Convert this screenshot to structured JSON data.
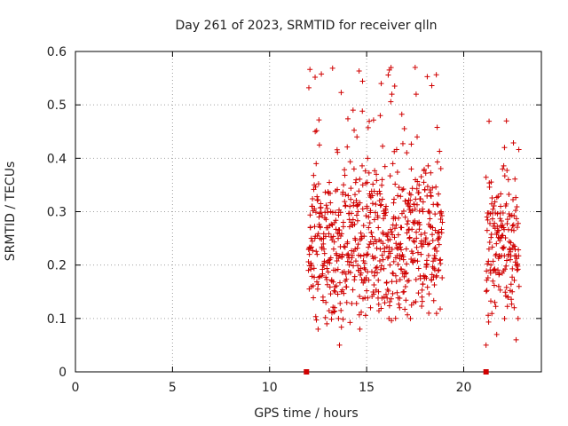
{
  "chart_data": {
    "type": "scatter",
    "title": "Day 261 of 2023, SRMTID for receiver qlln",
    "xlabel": "GPS time / hours",
    "ylabel": "SRMTID / TECUs",
    "xlim": [
      0,
      24
    ],
    "ylim": [
      0,
      0.6
    ],
    "xticks": [
      0,
      5,
      10,
      15,
      20
    ],
    "xtick_labels": [
      "0",
      "5",
      "10",
      "15",
      "20"
    ],
    "yticks": [
      0,
      0.1,
      0.2,
      0.3,
      0.4,
      0.5,
      0.6
    ],
    "ytick_labels": [
      "0",
      "0.1",
      "0.2",
      "0.3",
      "0.4",
      "0.5",
      "0.6"
    ],
    "grid": true,
    "marker": "+",
    "color": "#d00000",
    "series": [
      {
        "name": "SRMTID",
        "segments": [
          {
            "start_hour": 12.0,
            "end_hour": 18.9,
            "min": 0.05,
            "max": 0.57
          },
          {
            "start_hour": 21.15,
            "end_hour": 22.85,
            "min": 0.05,
            "max": 0.47
          }
        ],
        "points": [
          [
            12.0,
            0.19
          ],
          [
            12.05,
            0.22
          ],
          [
            12.1,
            0.27
          ],
          [
            12.15,
            0.25
          ],
          [
            12.2,
            0.31
          ],
          [
            12.3,
            0.35
          ],
          [
            12.35,
            0.45
          ],
          [
            12.4,
            0.39
          ],
          [
            12.45,
            0.22
          ],
          [
            12.5,
            0.08
          ],
          [
            12.55,
            0.29
          ],
          [
            12.6,
            0.25
          ],
          [
            12.7,
            0.18
          ],
          [
            12.75,
            0.14
          ],
          [
            12.8,
            0.23
          ],
          [
            12.9,
            0.13
          ],
          [
            12.95,
            0.09
          ],
          [
            13.0,
            0.27
          ],
          [
            13.1,
            0.21
          ],
          [
            13.15,
            0.3
          ],
          [
            13.2,
            0.17
          ],
          [
            13.3,
            0.23
          ],
          [
            13.35,
            0.12
          ],
          [
            13.4,
            0.19
          ],
          [
            13.5,
            0.26
          ],
          [
            13.55,
            0.1
          ],
          [
            13.6,
            0.05
          ],
          [
            13.7,
            0.15
          ],
          [
            13.75,
            0.22
          ],
          [
            13.8,
            0.28
          ],
          [
            13.9,
            0.17
          ],
          [
            14.0,
            0.24
          ],
          [
            14.05,
            0.33
          ],
          [
            14.1,
            0.2
          ],
          [
            14.2,
            0.28
          ],
          [
            14.3,
            0.49
          ],
          [
            14.35,
            0.38
          ],
          [
            14.4,
            0.25
          ],
          [
            14.5,
            0.44
          ],
          [
            14.55,
            0.3
          ],
          [
            14.6,
            0.19
          ],
          [
            14.65,
            0.08
          ],
          [
            14.7,
            0.26
          ],
          [
            14.8,
            0.35
          ],
          [
            14.9,
            0.17
          ],
          [
            15.0,
            0.22
          ],
          [
            15.05,
            0.4
          ],
          [
            15.1,
            0.29
          ],
          [
            15.2,
            0.12
          ],
          [
            15.3,
            0.33
          ],
          [
            15.35,
            0.24
          ],
          [
            15.4,
            0.18
          ],
          [
            15.5,
            0.37
          ],
          [
            15.6,
            0.27
          ],
          [
            15.7,
            0.48
          ],
          [
            15.75,
            0.54
          ],
          [
            15.8,
            0.36
          ],
          [
            15.85,
            0.21
          ],
          [
            15.9,
            0.14
          ],
          [
            16.0,
            0.31
          ],
          [
            16.1,
            0.26
          ],
          [
            16.15,
            0.1
          ],
          [
            16.2,
            0.2
          ],
          [
            16.3,
            0.52
          ],
          [
            16.35,
            0.39
          ],
          [
            16.4,
            0.29
          ],
          [
            16.5,
            0.18
          ],
          [
            16.6,
            0.33
          ],
          [
            16.7,
            0.12
          ],
          [
            16.75,
            0.24
          ],
          [
            16.8,
            0.27
          ],
          [
            16.9,
            0.21
          ],
          [
            17.0,
            0.32
          ],
          [
            17.1,
            0.17
          ],
          [
            17.2,
            0.25
          ],
          [
            17.3,
            0.38
          ],
          [
            17.4,
            0.28
          ],
          [
            17.5,
            0.57
          ],
          [
            17.55,
            0.52
          ],
          [
            17.6,
            0.44
          ],
          [
            17.7,
            0.35
          ],
          [
            17.8,
            0.22
          ],
          [
            17.85,
            0.14
          ],
          [
            17.9,
            0.3
          ],
          [
            18.0,
            0.26
          ],
          [
            18.1,
            0.2
          ],
          [
            18.2,
            0.11
          ],
          [
            18.3,
            0.33
          ],
          [
            18.4,
            0.27
          ],
          [
            18.5,
            0.23
          ],
          [
            18.6,
            0.18
          ],
          [
            18.7,
            0.25
          ],
          [
            18.8,
            0.21
          ],
          [
            18.9,
            0.28
          ],
          [
            21.15,
            0.05
          ],
          [
            21.2,
            0.29
          ],
          [
            21.3,
            0.23
          ],
          [
            21.4,
            0.2
          ],
          [
            21.5,
            0.17
          ],
          [
            21.6,
            0.13
          ],
          [
            21.7,
            0.07
          ],
          [
            21.8,
            0.16
          ],
          [
            21.85,
            0.25
          ],
          [
            21.9,
            0.31
          ],
          [
            22.0,
            0.38
          ],
          [
            22.05,
            0.27
          ],
          [
            22.1,
            0.42
          ],
          [
            22.2,
            0.47
          ],
          [
            22.3,
            0.36
          ],
          [
            22.4,
            0.21
          ],
          [
            22.5,
            0.15
          ],
          [
            22.6,
            0.12
          ],
          [
            22.7,
            0.06
          ],
          [
            22.8,
            0.1
          ],
          [
            22.85,
            0.16
          ]
        ]
      }
    ],
    "markers_on_axis": [
      {
        "x": 11.9,
        "y": 0.0
      },
      {
        "x": 21.15,
        "y": 0.0
      }
    ]
  }
}
